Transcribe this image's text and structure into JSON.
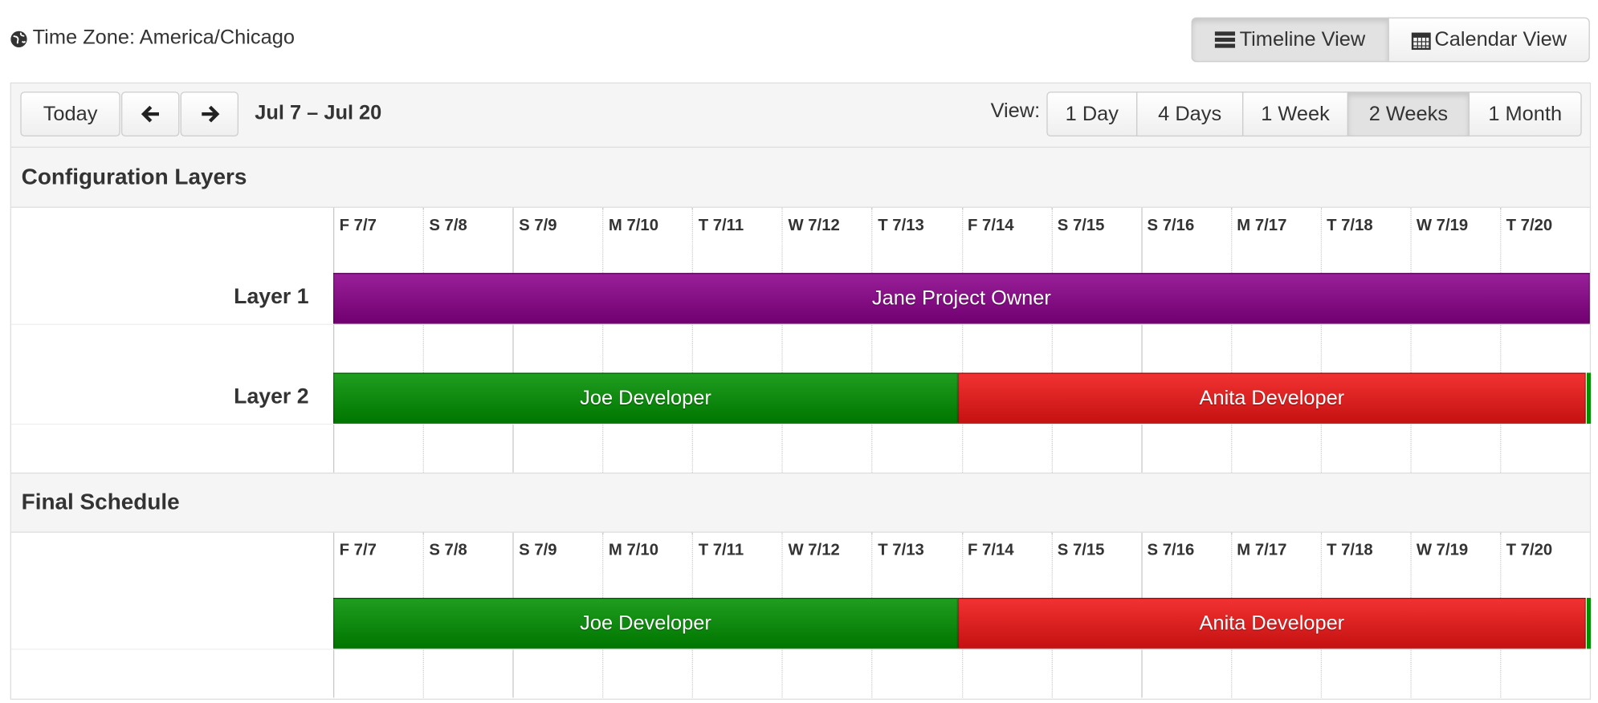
{
  "timezone": "Time Zone: America/Chicago",
  "view_toggle": [
    "Timeline View",
    "Calendar View"
  ],
  "toolbar": {
    "today": "Today",
    "range": "Jul 7 – Jul 20",
    "view_label": "View:",
    "views": [
      "1 Day",
      "4 Days",
      "1 Week",
      "2 Weeks",
      "1 Month"
    ]
  },
  "sections": [
    {
      "title": "Configuration Layers",
      "days": [
        "F 7/7",
        "S 7/8",
        "S 7/9",
        "M 7/10",
        "T 7/11",
        "W 7/12",
        "T 7/13",
        "F 7/14",
        "S 7/15",
        "S 7/16",
        "M 7/17",
        "T 7/18",
        "W 7/19",
        "T 7/20"
      ],
      "layers": [
        {
          "label": "Layer 1",
          "shifts": [
            {
              "name": "Jane Project Owner",
              "color": "#8a008a"
            }
          ]
        },
        {
          "label": "Layer 2",
          "shifts": [
            {
              "name": "Joe Developer",
              "color": "#009000"
            },
            {
              "name": "Anita Developer",
              "color": "#f01515"
            }
          ]
        }
      ]
    },
    {
      "title": "Final Schedule",
      "days": [
        "F 7/7",
        "S 7/8",
        "S 7/9",
        "M 7/10",
        "T 7/11",
        "W 7/12",
        "T 7/13",
        "F 7/14",
        "S 7/15",
        "S 7/16",
        "M 7/17",
        "T 7/18",
        "W 7/19",
        "T 7/20"
      ],
      "layers": [
        {
          "shifts": [
            {
              "name": "Joe Developer",
              "color": "#009000"
            },
            {
              "name": "Anita Developer",
              "color": "#f01515"
            }
          ]
        }
      ]
    }
  ]
}
